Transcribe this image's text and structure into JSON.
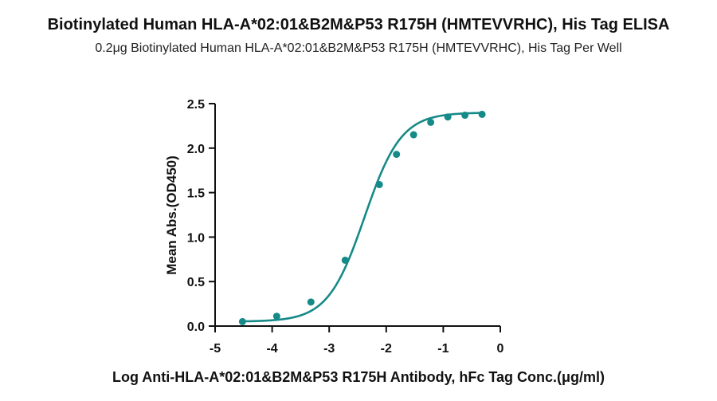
{
  "chart_data": {
    "type": "scatter",
    "title": "Biotinylated Human HLA-A*02:01&B2M&P53 R175H (HMTEVVRHC), His Tag ELISA",
    "subtitle": "0.2μg Biotinylated Human HLA-A*02:01&B2M&P53 R175H (HMTEVVRHC), His Tag Per Well",
    "xlabel": "Log Anti-HLA-A*02:01&B2M&P53 R175H Antibody, hFc Tag Conc.(μg/ml)",
    "ylabel": "Mean Abs.(OD450)",
    "xlim": [
      -5,
      0
    ],
    "ylim": [
      0,
      2.5
    ],
    "xticks": [
      "-5",
      "-4",
      "-3",
      "-2",
      "-1",
      "0"
    ],
    "yticks": [
      "0.0",
      "0.5",
      "1.0",
      "1.5",
      "2.0",
      "2.5"
    ],
    "grid": false,
    "color": "#168a88",
    "series": [
      {
        "x": [
          -4.52,
          -3.92,
          -3.32,
          -2.72,
          -2.12,
          -1.82,
          -1.52,
          -1.22,
          -0.92,
          -0.62,
          -0.32
        ],
        "y": [
          0.05,
          0.11,
          0.27,
          0.74,
          1.59,
          1.93,
          2.15,
          2.29,
          2.35,
          2.37,
          2.38
        ]
      }
    ],
    "fit": {
      "type": "4PL",
      "bottom": 0.05,
      "top": 2.4,
      "log_ec50": -2.38,
      "hill": 1.35
    }
  }
}
